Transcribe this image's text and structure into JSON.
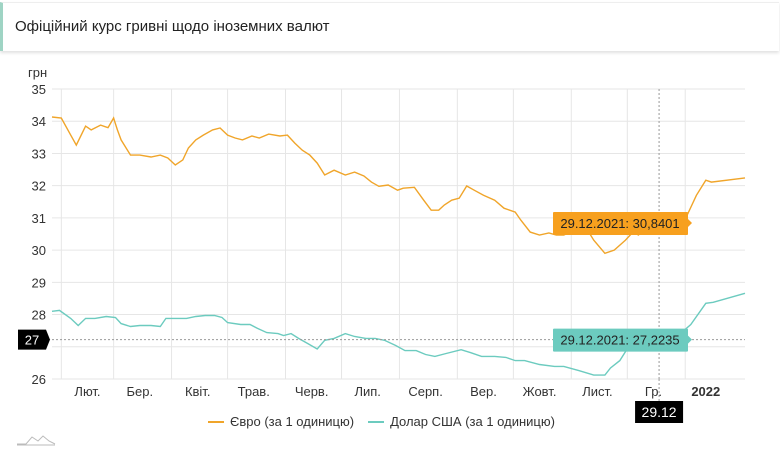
{
  "header": {
    "title": "Офіційний курс гривні щодо іноземних валют"
  },
  "chart_data": {
    "type": "line",
    "ylabel": "грн",
    "ylim": [
      26,
      35
    ],
    "yticks": [
      "26",
      "27",
      "28",
      "29",
      "30",
      "31",
      "32",
      "33",
      "34",
      "35"
    ],
    "x_unit": "days since 2021-01-27",
    "xlim": [
      0,
      371
    ],
    "xticks": [
      {
        "label": "Лют.",
        "day": 19
      },
      {
        "label": "Бер.",
        "day": 47
      },
      {
        "label": "Квіт.",
        "day": 78
      },
      {
        "label": "Трав.",
        "day": 108
      },
      {
        "label": "Черв.",
        "day": 139
      },
      {
        "label": "Лип.",
        "day": 169
      },
      {
        "label": "Серп.",
        "day": 200
      },
      {
        "label": "Вер.",
        "day": 231
      },
      {
        "label": "Жовт.",
        "day": 261
      },
      {
        "label": "Лист.",
        "day": 292
      },
      {
        "label": "Гр.",
        "day": 322
      },
      {
        "label": "2022",
        "day": 350,
        "bold": true
      }
    ],
    "gridlines_days": [
      5,
      33,
      64,
      94,
      125,
      155,
      186,
      217,
      247,
      278,
      308,
      339
    ],
    "grid": true,
    "legend_position": "bottom",
    "series": [
      {
        "name": "Євро (за 1 одиницю)",
        "color": "#f0a52a",
        "points": [
          [
            0,
            34.13
          ],
          [
            5,
            34.1
          ],
          [
            10,
            33.57
          ],
          [
            13,
            33.26
          ],
          [
            18,
            33.85
          ],
          [
            21,
            33.73
          ],
          [
            26,
            33.88
          ],
          [
            30,
            33.8
          ],
          [
            33,
            34.1
          ],
          [
            35,
            33.73
          ],
          [
            37,
            33.42
          ],
          [
            42,
            32.95
          ],
          [
            47,
            32.95
          ],
          [
            53,
            32.89
          ],
          [
            58,
            32.95
          ],
          [
            62,
            32.86
          ],
          [
            66,
            32.64
          ],
          [
            70,
            32.8
          ],
          [
            73,
            33.17
          ],
          [
            77,
            33.42
          ],
          [
            81,
            33.57
          ],
          [
            86,
            33.73
          ],
          [
            90,
            33.79
          ],
          [
            94,
            33.57
          ],
          [
            98,
            33.48
          ],
          [
            102,
            33.42
          ],
          [
            107,
            33.54
          ],
          [
            111,
            33.48
          ],
          [
            116,
            33.6
          ],
          [
            122,
            33.54
          ],
          [
            126,
            33.57
          ],
          [
            130,
            33.32
          ],
          [
            134,
            33.1
          ],
          [
            138,
            32.95
          ],
          [
            142,
            32.7
          ],
          [
            146,
            32.33
          ],
          [
            151,
            32.48
          ],
          [
            157,
            32.33
          ],
          [
            162,
            32.42
          ],
          [
            167,
            32.3
          ],
          [
            171,
            32.11
          ],
          [
            175,
            31.98
          ],
          [
            180,
            32.02
          ],
          [
            185,
            31.86
          ],
          [
            188,
            31.92
          ],
          [
            194,
            31.95
          ],
          [
            199,
            31.55
          ],
          [
            203,
            31.24
          ],
          [
            207,
            31.24
          ],
          [
            210,
            31.4
          ],
          [
            214,
            31.55
          ],
          [
            218,
            31.61
          ],
          [
            222,
            31.99
          ],
          [
            226,
            31.86
          ],
          [
            231,
            31.7
          ],
          [
            237,
            31.55
          ],
          [
            242,
            31.3
          ],
          [
            248,
            31.18
          ],
          [
            251,
            30.93
          ],
          [
            256,
            30.56
          ],
          [
            261,
            30.47
          ],
          [
            266,
            30.53
          ],
          [
            270,
            30.47
          ],
          [
            274,
            30.47
          ],
          [
            280,
            30.63
          ],
          [
            285,
            30.78
          ],
          [
            290,
            30.31
          ],
          [
            296,
            29.9
          ],
          [
            301,
            30.0
          ],
          [
            307,
            30.31
          ],
          [
            311,
            30.56
          ],
          [
            314,
            30.47
          ],
          [
            319,
            30.78
          ],
          [
            325,
            30.84
          ],
          [
            330,
            30.84
          ],
          [
            335,
            30.93
          ],
          [
            340,
            31.08
          ],
          [
            345,
            31.7
          ],
          [
            350,
            32.17
          ],
          [
            353,
            32.11
          ],
          [
            371,
            32.24
          ]
        ]
      },
      {
        "name": "Долар США (за 1 одиницю)",
        "color": "#6ccbbf",
        "points": [
          [
            0,
            28.1
          ],
          [
            4,
            28.13
          ],
          [
            10,
            27.88
          ],
          [
            14,
            27.66
          ],
          [
            18,
            27.88
          ],
          [
            23,
            27.88
          ],
          [
            29,
            27.94
          ],
          [
            34,
            27.91
          ],
          [
            37,
            27.72
          ],
          [
            42,
            27.63
          ],
          [
            47,
            27.66
          ],
          [
            53,
            27.66
          ],
          [
            58,
            27.63
          ],
          [
            61,
            27.88
          ],
          [
            66,
            27.88
          ],
          [
            72,
            27.88
          ],
          [
            77,
            27.94
          ],
          [
            82,
            27.97
          ],
          [
            87,
            27.97
          ],
          [
            91,
            27.91
          ],
          [
            94,
            27.75
          ],
          [
            101,
            27.69
          ],
          [
            106,
            27.69
          ],
          [
            110,
            27.57
          ],
          [
            115,
            27.44
          ],
          [
            121,
            27.41
          ],
          [
            124,
            27.35
          ],
          [
            128,
            27.41
          ],
          [
            132,
            27.26
          ],
          [
            137,
            27.1
          ],
          [
            142,
            26.93
          ],
          [
            146,
            27.2
          ],
          [
            151,
            27.26
          ],
          [
            157,
            27.41
          ],
          [
            162,
            27.32
          ],
          [
            168,
            27.26
          ],
          [
            173,
            27.26
          ],
          [
            178,
            27.2
          ],
          [
            184,
            27.04
          ],
          [
            189,
            26.88
          ],
          [
            195,
            26.88
          ],
          [
            200,
            26.76
          ],
          [
            205,
            26.7
          ],
          [
            211,
            26.79
          ],
          [
            219,
            26.91
          ],
          [
            224,
            26.82
          ],
          [
            230,
            26.7
          ],
          [
            237,
            26.7
          ],
          [
            243,
            26.67
          ],
          [
            248,
            26.57
          ],
          [
            253,
            26.57
          ],
          [
            261,
            26.45
          ],
          [
            269,
            26.39
          ],
          [
            274,
            26.39
          ],
          [
            282,
            26.26
          ],
          [
            290,
            26.12
          ],
          [
            296,
            26.12
          ],
          [
            299,
            26.34
          ],
          [
            304,
            26.57
          ],
          [
            308,
            26.94
          ],
          [
            315,
            27.04
          ],
          [
            322,
            27.13
          ],
          [
            325,
            27.22
          ],
          [
            331,
            27.29
          ],
          [
            337,
            27.44
          ],
          [
            342,
            27.69
          ],
          [
            350,
            28.35
          ],
          [
            354,
            28.38
          ],
          [
            371,
            28.66
          ]
        ]
      }
    ],
    "cursor": {
      "day": 325,
      "x_label": "29.12",
      "y_label": "27",
      "tooltips": [
        {
          "text": "29.12.2021: 30,8401",
          "value": 30.8401,
          "color": "#f7a01e"
        },
        {
          "text": "29.12.2021: 27,2235",
          "value": 27.2235,
          "color": "#6ccbbf"
        }
      ]
    }
  }
}
